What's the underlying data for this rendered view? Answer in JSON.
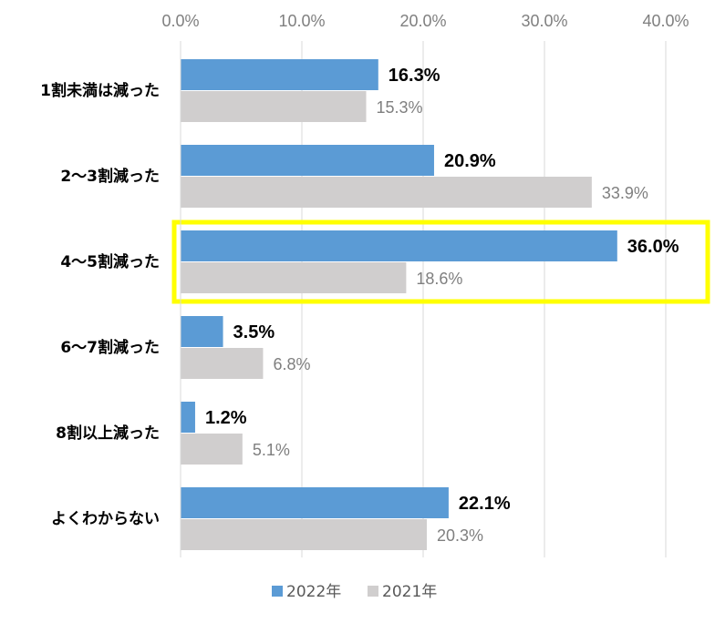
{
  "chart_data": {
    "type": "bar",
    "orientation": "horizontal",
    "categories": [
      "1割未満は減った",
      "2〜3割減った",
      "4〜5割減った",
      "6〜7割減った",
      "8割以上減った",
      "よくわからない"
    ],
    "series": [
      {
        "name": "2022年",
        "values": [
          16.3,
          20.9,
          36.0,
          3.5,
          1.2,
          22.1
        ],
        "labels": [
          "16.3%",
          "20.9%",
          "36.0%",
          "3.5%",
          "1.2%",
          "22.1%"
        ],
        "color": "#5b9bd5"
      },
      {
        "name": "2021年",
        "values": [
          15.3,
          33.9,
          18.6,
          6.8,
          5.1,
          20.3
        ],
        "labels": [
          "15.3%",
          "33.9%",
          "18.6%",
          "6.8%",
          "5.1%",
          "20.3%"
        ],
        "color": "#d0cece"
      }
    ],
    "xticks": [
      "0.0%",
      "10.0%",
      "20.0%",
      "30.0%",
      "40.0%"
    ],
    "xlim": [
      0,
      40
    ],
    "grid": true,
    "axis_position": "top",
    "legend_position": "bottom",
    "highlight_category": "4〜5割減った",
    "highlight_color": "#ffff00"
  }
}
